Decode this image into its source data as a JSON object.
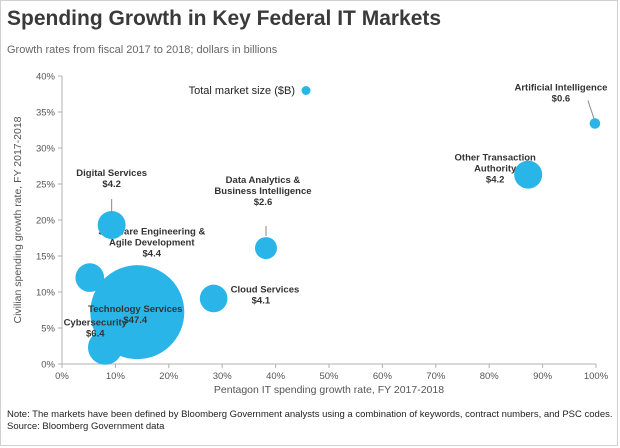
{
  "header": {
    "title": "Spending Growth in Key Federal IT Markets",
    "subtitle": "Growth rates from fiscal 2017 to 2018; dollars in billions"
  },
  "footer": {
    "note": "Note: The markets have been defined by Bloomberg Government analysts using a combination of keywords, contract numbers, and PSC codes.",
    "source": "Source: Bloomberg Government data"
  },
  "colors": {
    "bubble": "#29b5e8",
    "leader": "#888888",
    "axis": "#b0b0b0"
  },
  "chart_data": {
    "type": "scatter",
    "title": "Spending Growth in Key Federal IT Markets",
    "subtitle": "Growth rates from fiscal 2017 to 2018; dollars in billions",
    "xlabel": "Pentagon IT spending growth rate, FY 2017-2018",
    "ylabel": "Civilian spending growth rate, FY 2017-2018",
    "xlim": [
      0,
      100
    ],
    "ylim": [
      0,
      40
    ],
    "xticks": [
      0,
      10,
      20,
      30,
      40,
      50,
      60,
      70,
      80,
      90,
      100
    ],
    "yticks": [
      0,
      5,
      10,
      15,
      20,
      25,
      30,
      35,
      40
    ],
    "x_tick_labels": [
      "0%",
      "10%",
      "20%",
      "30%",
      "40%",
      "50%",
      "60%",
      "70%",
      "80%",
      "90%",
      "100%"
    ],
    "y_tick_labels": [
      "0%",
      "5%",
      "10%",
      "15%",
      "20%",
      "25%",
      "30%",
      "35%",
      "40%"
    ],
    "grid": false,
    "legend": {
      "label": "Total market size ($B)",
      "position": "top-center"
    },
    "points": [
      {
        "name": "Technology Services",
        "label_lines": [
          "Technology Services",
          "$47.4"
        ],
        "x": 14.1,
        "y": 7.2,
        "size": 47.4
      },
      {
        "name": "Cybersecurity",
        "label_lines": [
          "Cybersecurity",
          "$6.4"
        ],
        "x": 8.1,
        "y": 2.3,
        "size": 6.4
      },
      {
        "name": "Software Engineering & Agile Development",
        "label_lines": [
          "Software Engineering &",
          "Agile Development",
          "$4.4"
        ],
        "x": 5.2,
        "y": 12.0,
        "size": 4.4
      },
      {
        "name": "Digital Services",
        "label_lines": [
          "Digital Services",
          "$4.2"
        ],
        "x": 9.3,
        "y": 19.3,
        "size": 4.2
      },
      {
        "name": "Cloud Services",
        "label_lines": [
          "Cloud Services",
          "$4.1"
        ],
        "x": 28.4,
        "y": 9.1,
        "size": 4.1
      },
      {
        "name": "Data Analytics & Business Intelligence",
        "label_lines": [
          "Data Analytics &",
          "Business  Intelligence",
          "$2.6"
        ],
        "x": 38.2,
        "y": 16.1,
        "size": 2.6
      },
      {
        "name": "Other Transaction Authority",
        "label_lines": [
          "Other Transaction",
          "Authority",
          "$4.2"
        ],
        "x": 87.3,
        "y": 26.3,
        "size": 4.2
      },
      {
        "name": "Artificial Intelligence",
        "label_lines": [
          "Artificial Intelligence",
          "$0.6"
        ],
        "x": 99.8,
        "y": 33.4,
        "size": 0.6
      }
    ]
  }
}
